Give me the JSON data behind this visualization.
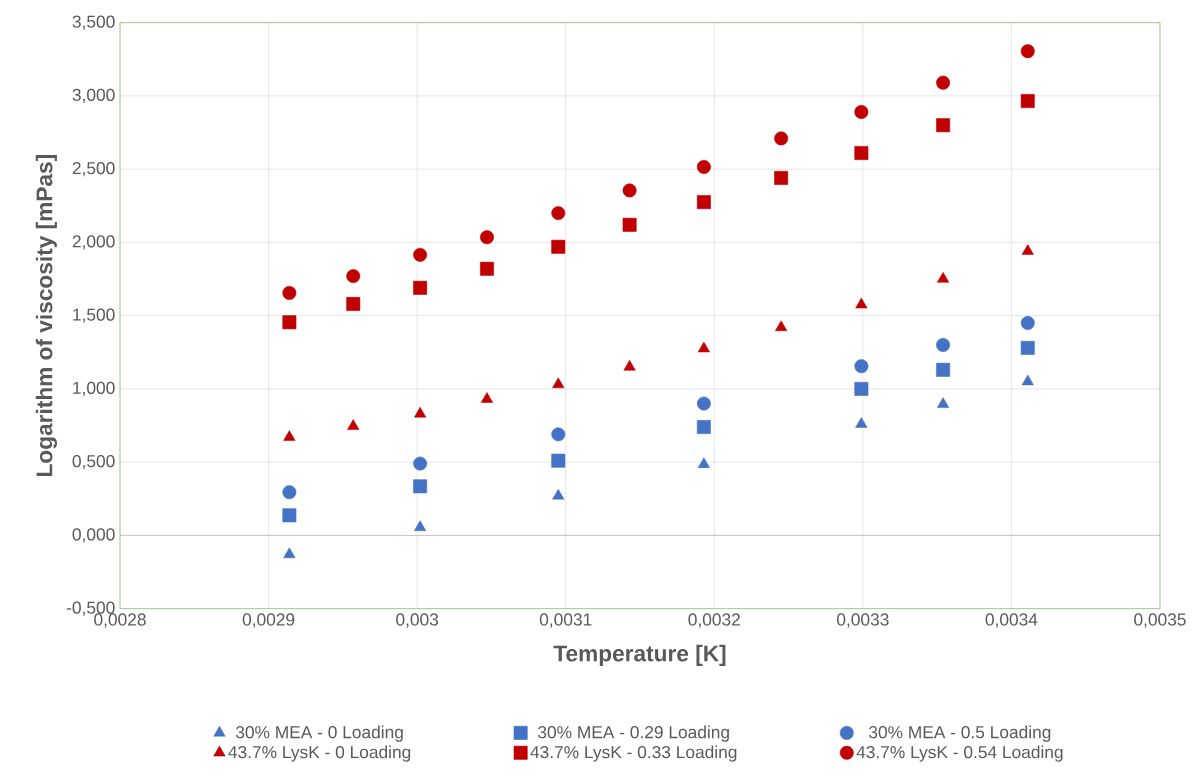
{
  "chart_data": {
    "type": "scatter",
    "xlabel": "Temperature [K]",
    "ylabel": "Logarithm of viscosity [mPas]",
    "series": [
      {
        "name": "30% MEA - 0 Loading",
        "color": "#4472c4",
        "marker": "triangle",
        "x": [
          0.002914,
          0.003002,
          0.003095,
          0.003193,
          0.003299,
          0.003354,
          0.003411
        ],
        "values": [
          -0.13,
          0.055,
          0.27,
          0.485,
          0.76,
          0.895,
          1.05
        ]
      },
      {
        "name": "30% MEA - 0.29 Loading",
        "color": "#4472c4",
        "marker": "square",
        "x": [
          0.002914,
          0.003002,
          0.003095,
          0.003193,
          0.003299,
          0.003354,
          0.003411
        ],
        "values": [
          0.137,
          0.335,
          0.51,
          0.74,
          1.0,
          1.13,
          1.28
        ]
      },
      {
        "name": "30% MEA - 0.5 Loading",
        "color": "#4472c4",
        "marker": "circle",
        "x": [
          0.002914,
          0.003002,
          0.003095,
          0.003193,
          0.003299,
          0.003354,
          0.003411
        ],
        "values": [
          0.295,
          0.49,
          0.69,
          0.9,
          1.155,
          1.3,
          1.45
        ]
      },
      {
        "name": "43.7% LysK - 0 Loading",
        "color": "#c00000",
        "marker": "triangle",
        "x": [
          0.002914,
          0.002957,
          0.003002,
          0.003047,
          0.003095,
          0.003143,
          0.003193,
          0.003245,
          0.003299,
          0.003354,
          0.003411
        ],
        "values": [
          0.67,
          0.745,
          0.83,
          0.93,
          1.03,
          1.15,
          1.275,
          1.42,
          1.575,
          1.75,
          1.94
        ]
      },
      {
        "name": "43.7% LysK - 0.33 Loading",
        "color": "#c00000",
        "marker": "square",
        "x": [
          0.002914,
          0.002957,
          0.003002,
          0.003047,
          0.003095,
          0.003143,
          0.003193,
          0.003245,
          0.003299,
          0.003354,
          0.003411
        ],
        "values": [
          1.455,
          1.58,
          1.69,
          1.82,
          1.97,
          2.12,
          2.275,
          2.44,
          2.61,
          2.8,
          2.965
        ]
      },
      {
        "name": "43.7% LysK - 0.54 Loading",
        "color": "#c00000",
        "marker": "circle",
        "x": [
          0.002914,
          0.002957,
          0.003002,
          0.003047,
          0.003095,
          0.003143,
          0.003193,
          0.003245,
          0.003299,
          0.003354,
          0.003411
        ],
        "values": [
          1.655,
          1.77,
          1.915,
          2.035,
          2.2,
          2.355,
          2.515,
          2.71,
          2.89,
          3.09,
          3.305
        ]
      }
    ],
    "xlim": [
      0.0028,
      0.0035
    ],
    "xticks": [
      {
        "value": 0.0028,
        "label": "0,0028"
      },
      {
        "value": 0.0029,
        "label": "0,0029"
      },
      {
        "value": 0.003,
        "label": "0,003"
      },
      {
        "value": 0.0031,
        "label": "0,0031"
      },
      {
        "value": 0.0032,
        "label": "0,0032"
      },
      {
        "value": 0.0033,
        "label": "0,0033"
      },
      {
        "value": 0.0034,
        "label": "0,0034"
      },
      {
        "value": 0.0035,
        "label": "0,0035"
      }
    ],
    "ylim": [
      -0.5,
      3.5
    ],
    "yticks": [
      {
        "value": -0.5,
        "label": "-0,500"
      },
      {
        "value": 0,
        "label": "0,000"
      },
      {
        "value": 0.5,
        "label": "0,500"
      },
      {
        "value": 1,
        "label": "1,000"
      },
      {
        "value": 1.5,
        "label": "1,500"
      },
      {
        "value": 2,
        "label": "2,000"
      },
      {
        "value": 2.5,
        "label": "2,500"
      },
      {
        "value": 3,
        "label": "3,000"
      },
      {
        "value": 3.5,
        "label": "3,500"
      }
    ],
    "grid": true,
    "legend": "bottom"
  }
}
